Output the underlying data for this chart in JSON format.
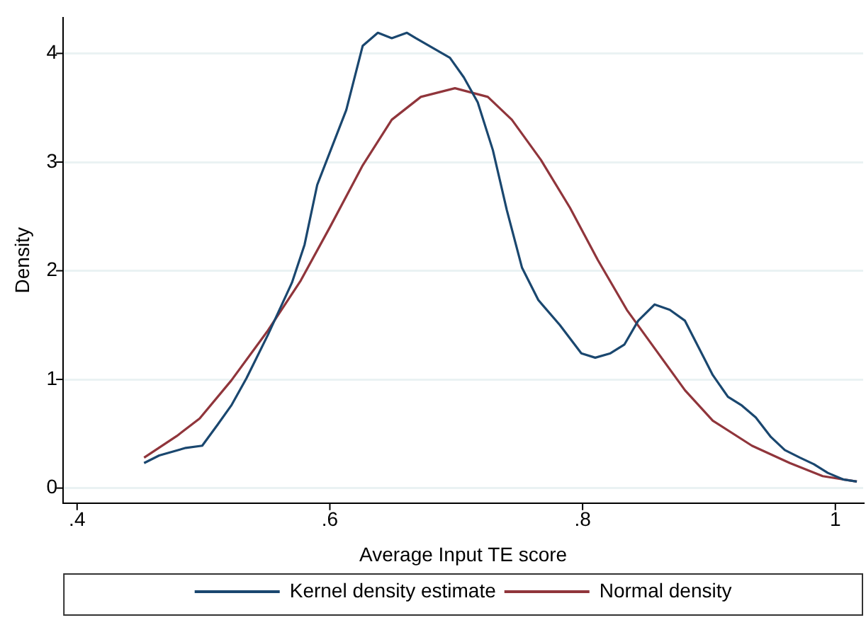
{
  "chart_data": {
    "type": "line",
    "xlabel": "Average Input TE score",
    "ylabel": "Density",
    "xlim": [
      0.389,
      1.022
    ],
    "xticks": [
      {
        "value": 0.4,
        "label": ".4"
      },
      {
        "value": 0.6,
        "label": ".6"
      },
      {
        "value": 0.8,
        "label": ".8"
      },
      {
        "value": 1,
        "label": "1"
      }
    ],
    "ylim": [
      -0.138,
      4.33
    ],
    "yticks": [
      0,
      1,
      2,
      3,
      4
    ],
    "grid": "y",
    "legend": "bottom",
    "marker": "none",
    "line_style": "solid",
    "series": [
      {
        "name": "Kernel density estimate",
        "color": "#1a476f",
        "x": [
          0.453,
          0.465,
          0.486,
          0.499,
          0.511,
          0.522,
          0.534,
          0.551,
          0.57,
          0.58,
          0.59,
          0.613,
          0.626,
          0.638,
          0.649,
          0.661,
          0.668,
          0.695,
          0.706,
          0.717,
          0.729,
          0.74,
          0.752,
          0.765,
          0.782,
          0.799,
          0.81,
          0.822,
          0.833,
          0.844,
          0.857,
          0.869,
          0.881,
          0.903,
          0.915,
          0.926,
          0.937,
          0.949,
          0.96,
          0.972,
          0.983,
          0.994,
          1.006,
          1.017
        ],
        "values": [
          0.23,
          0.3,
          0.37,
          0.39,
          0.58,
          0.76,
          1.01,
          1.41,
          1.89,
          2.24,
          2.79,
          3.48,
          4.07,
          4.19,
          4.14,
          4.19,
          4.14,
          3.96,
          3.78,
          3.55,
          3.11,
          2.56,
          2.03,
          1.73,
          1.5,
          1.24,
          1.2,
          1.24,
          1.32,
          1.54,
          1.69,
          1.64,
          1.54,
          1.04,
          0.84,
          0.76,
          0.65,
          0.47,
          0.35,
          0.28,
          0.22,
          0.14,
          0.08,
          0.06
        ]
      },
      {
        "name": "Normal density",
        "color": "#90353b",
        "x": [
          0.453,
          0.479,
          0.497,
          0.522,
          0.551,
          0.577,
          0.6,
          0.626,
          0.649,
          0.672,
          0.699,
          0.725,
          0.744,
          0.767,
          0.79,
          0.812,
          0.835,
          0.858,
          0.881,
          0.903,
          0.934,
          0.964,
          0.99,
          1.017
        ],
        "values": [
          0.28,
          0.48,
          0.64,
          0.99,
          1.45,
          1.91,
          2.4,
          2.97,
          3.39,
          3.6,
          3.68,
          3.6,
          3.39,
          3.02,
          2.58,
          2.1,
          1.64,
          1.27,
          0.9,
          0.62,
          0.39,
          0.23,
          0.11,
          0.06
        ]
      }
    ]
  }
}
